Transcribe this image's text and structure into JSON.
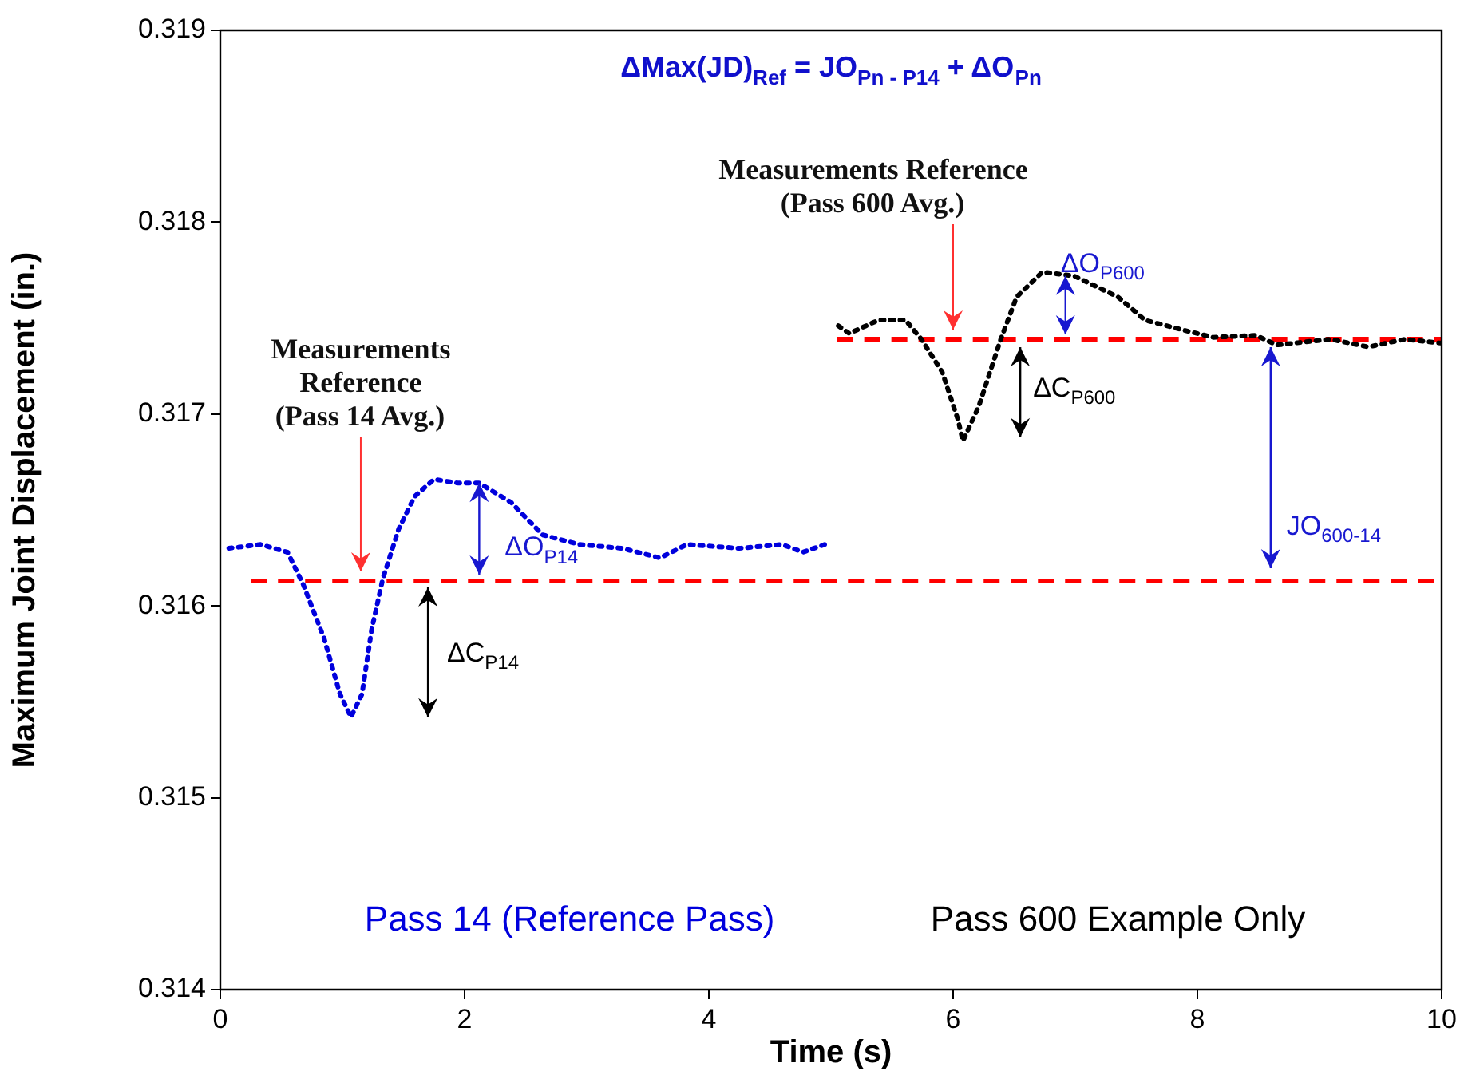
{
  "chart_data": {
    "type": "line",
    "title": "ΔMax(JD)$_{Ref}$ = JO$_{Pn - P14}$ + ΔO$_{Pn}$",
    "xlabel": "Time (s)",
    "ylabel": "Maximum Joint Displacement (in.)",
    "xlim": [
      0,
      10
    ],
    "xticks": [
      0,
      2,
      4,
      6,
      8,
      10
    ],
    "ylim": [
      0.314,
      0.319
    ],
    "yticks": [
      0.314,
      0.315,
      0.316,
      0.317,
      0.318,
      0.319
    ],
    "grid": false,
    "legend": false,
    "marker": "none",
    "series": [
      {
        "color": "#0000dd",
        "line_style": "dotted",
        "x": [
          0.07,
          0.33,
          0.55,
          0.68,
          0.85,
          0.98,
          1.07,
          1.16,
          1.24,
          1.33,
          1.46,
          1.59,
          1.75,
          1.95,
          2.12,
          2.38,
          2.64,
          2.94,
          3.29,
          3.6,
          3.82,
          4.25,
          4.6,
          4.77,
          4.95
        ],
        "values": [
          0.3163,
          0.31632,
          0.31628,
          0.31611,
          0.31583,
          0.31554,
          0.31542,
          0.31554,
          0.31588,
          0.31614,
          0.3164,
          0.31657,
          0.31666,
          0.31664,
          0.31664,
          0.31654,
          0.31637,
          0.31632,
          0.3163,
          0.31625,
          0.31632,
          0.3163,
          0.31632,
          0.31628,
          0.31632
        ]
      },
      {
        "color": "#000000",
        "line_style": "dotted",
        "x": [
          5.06,
          5.15,
          5.39,
          5.61,
          5.74,
          5.91,
          6.04,
          6.08,
          6.21,
          6.39,
          6.52,
          6.73,
          6.99,
          7.35,
          7.57,
          7.87,
          8.13,
          8.48,
          8.65,
          9.09,
          9.4,
          9.7,
          9.99
        ],
        "values": [
          0.31746,
          0.31742,
          0.31749,
          0.31749,
          0.31739,
          0.31722,
          0.31697,
          0.31686,
          0.31704,
          0.31739,
          0.31761,
          0.31774,
          0.31772,
          0.31761,
          0.31749,
          0.31744,
          0.3174,
          0.31741,
          0.31736,
          0.31739,
          0.31735,
          0.31739,
          0.31737
        ]
      },
      {
        "color": "#ff0000",
        "line_style": "dashed",
        "x": [
          0.25,
          10
        ],
        "values": [
          0.31613,
          0.31613
        ]
      },
      {
        "color": "#ff0000",
        "line_style": "dashed",
        "x": [
          5.05,
          10
        ],
        "values": [
          0.31739,
          0.31739
        ]
      }
    ],
    "annotations": [
      "Measurements\nReference\n(Pass 14 Avg.)",
      "Measurements Reference\n(Pass 600 Avg.)",
      "ΔC$_{P14}$",
      {
        "text": "ΔO$_{P14}$",
        "x": 2.12,
        "y": 0.31664
      },
      "ΔC$_{P600}$",
      "ΔO$_{P600}$",
      {
        "text": "JO$_{600-14}$",
        "x": 8.6,
        "y": 0.31613
      },
      "Pass 14 (Reference Pass)",
      "Pass 600 Example Only"
    ]
  }
}
